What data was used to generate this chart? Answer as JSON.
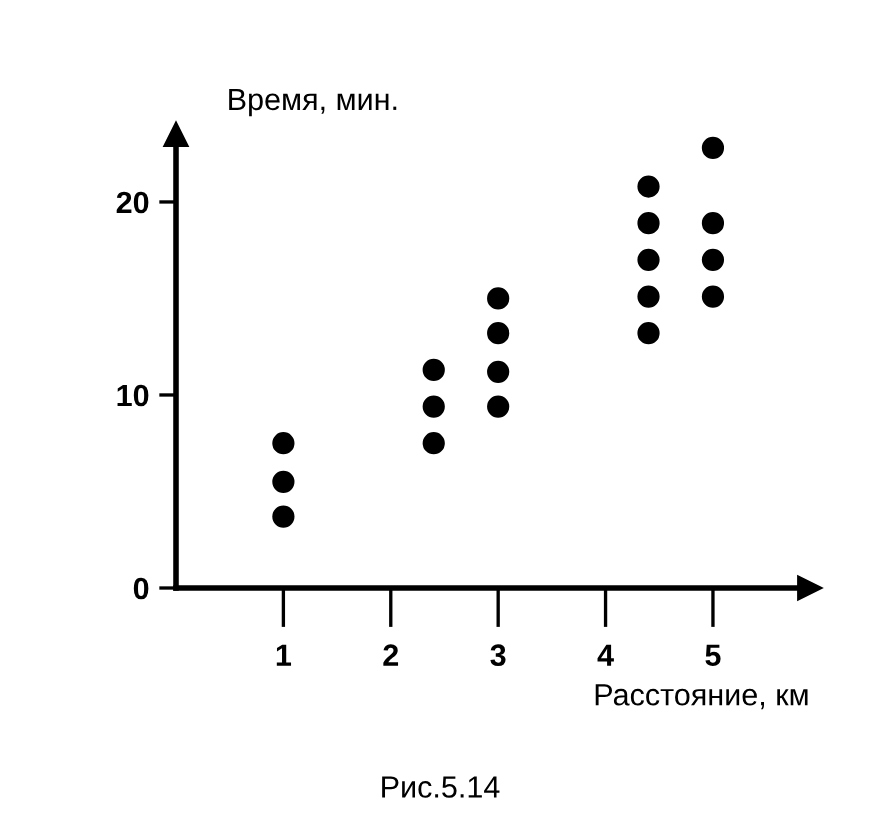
{
  "chart_data": {
    "type": "scatter",
    "xlabel": "Расстояние, км",
    "ylabel": "Время, мин.",
    "annotations": [
      "Рис.5.14"
    ],
    "x": [
      1,
      1,
      1,
      2.4,
      2.4,
      2.4,
      3,
      3,
      3,
      3,
      4.4,
      4.4,
      4.4,
      4.4,
      4.4,
      5,
      5,
      5,
      5
    ],
    "values": [
      7.5,
      5.5,
      3.7,
      11.3,
      9.4,
      7.5,
      15.0,
      13.2,
      11.2,
      9.4,
      20.8,
      18.9,
      17.0,
      15.1,
      13.2,
      22.8,
      18.9,
      17.0,
      15.1
    ],
    "color": "#000000",
    "marker": "circle",
    "xlim": [
      0,
      5.9
    ],
    "ylim": [
      0,
      23.5
    ],
    "xticks": [
      1,
      2,
      3,
      4,
      5
    ],
    "yticks": [
      0,
      10,
      20
    ],
    "grid": false,
    "legend": false
  }
}
